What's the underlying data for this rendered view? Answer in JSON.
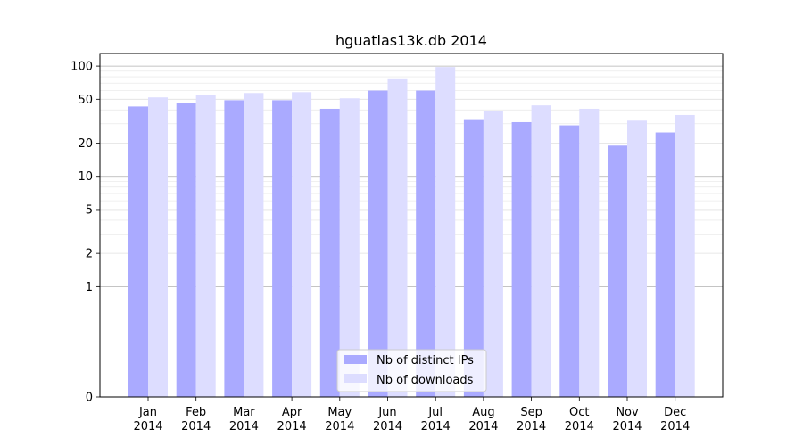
{
  "chart_data": {
    "type": "bar",
    "title": "hguatlas13k.db 2014",
    "xlabel": "",
    "ylabel": "",
    "categories": [
      "Jan\n2014",
      "Feb\n2014",
      "Mar\n2014",
      "Apr\n2014",
      "May\n2014",
      "Jun\n2014",
      "Jul\n2014",
      "Aug\n2014",
      "Sep\n2014",
      "Oct\n2014",
      "Nov\n2014",
      "Dec\n2014"
    ],
    "series": [
      {
        "name": "Nb of distinct IPs",
        "color": "#aaaaff",
        "values": [
          43,
          46,
          49,
          49,
          41,
          60,
          60,
          33,
          31,
          29,
          19,
          25
        ]
      },
      {
        "name": "Nb of downloads",
        "color": "#ddddff",
        "values": [
          52,
          55,
          57,
          58,
          51,
          76,
          98,
          39,
          44,
          41,
          32,
          36
        ]
      }
    ],
    "yscale": "symlog",
    "ylim": [
      0,
      130
    ],
    "yticks": [
      0,
      1,
      2,
      5,
      10,
      20,
      50,
      100
    ],
    "ytick_labels": [
      "0",
      "1",
      "2",
      "5",
      "10",
      "20",
      "50",
      "100"
    ],
    "grid": true,
    "legend_position": "lower center"
  }
}
